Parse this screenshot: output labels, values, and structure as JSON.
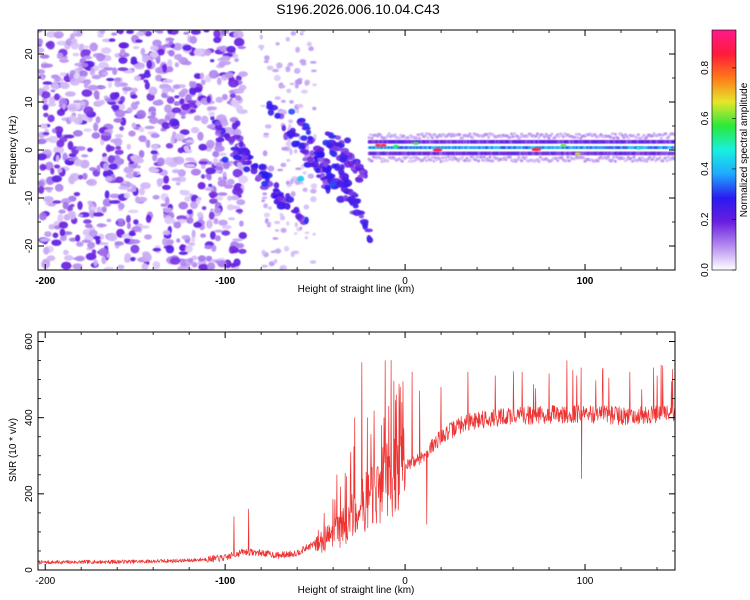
{
  "title": "S196.2026.006.10.04.C43",
  "chart_data": [
    {
      "type": "heatmap",
      "name": "spectrogram",
      "xlabel": "Height of straight line (km)",
      "ylabel": "Frequency (Hz)",
      "xlim": [
        -204,
        150
      ],
      "ylim": [
        -25,
        25
      ],
      "xticks": [
        -200,
        -100,
        0,
        100
      ],
      "xticks_bold": [
        -200,
        -100,
        100
      ],
      "yticks": [
        -20,
        -10,
        0,
        10,
        20
      ],
      "colorbar": {
        "label": "Normalized spectral amplitude",
        "range": [
          0,
          0.95
        ],
        "ticks": [
          0.0,
          0.2,
          0.4,
          0.6,
          0.8
        ],
        "tick_labels": [
          "0.0",
          "0.2",
          "0.4",
          "0.6",
          "0.8"
        ],
        "colors": [
          "#ffffff",
          "#b58cf0",
          "#6a1fe0",
          "#2a1af0",
          "#1fa8ff",
          "#18f0e0",
          "#2ae83a",
          "#e6e62a",
          "#ff7a1a",
          "#ff1a3a",
          "#ff1a8c"
        ]
      },
      "features": {
        "scatter_region_km": [
          -204,
          -110
        ],
        "cluster_region_km": [
          -110,
          -20
        ],
        "steady_line_region_km": [
          -20,
          150
        ],
        "steady_line_freq_hz": 0.5
      }
    },
    {
      "type": "line",
      "name": "snr",
      "xlabel": "Height of straight line (km)",
      "ylabel": "SNR (10 * v/v)",
      "xlim": [
        -204,
        150
      ],
      "ylim": [
        0,
        625
      ],
      "xticks": [
        -200,
        -100,
        0,
        100
      ],
      "xticks_bold": [
        -100
      ],
      "yticks": [
        0,
        200,
        400,
        600
      ],
      "color": "#ee3333",
      "baseline": [
        [
          -204,
          20
        ],
        [
          -150,
          22
        ],
        [
          -120,
          25
        ],
        [
          -100,
          32
        ],
        [
          -90,
          48
        ],
        [
          -80,
          45
        ],
        [
          -70,
          38
        ],
        [
          -60,
          45
        ],
        [
          -50,
          70
        ],
        [
          -40,
          90
        ],
        [
          -30,
          130
        ],
        [
          -20,
          190
        ],
        [
          -10,
          235
        ],
        [
          0,
          270
        ],
        [
          10,
          300
        ],
        [
          20,
          350
        ],
        [
          30,
          380
        ],
        [
          40,
          395
        ],
        [
          60,
          405
        ],
        [
          80,
          408
        ],
        [
          100,
          410
        ],
        [
          120,
          405
        ],
        [
          150,
          410
        ]
      ],
      "spikes": [
        [
          -95,
          140
        ],
        [
          -87,
          160
        ],
        [
          -38,
          250
        ],
        [
          -28,
          400
        ],
        [
          -24,
          545
        ],
        [
          -21,
          400
        ],
        [
          -13,
          380
        ],
        [
          -11,
          550
        ],
        [
          -9,
          430
        ],
        [
          -5,
          460
        ],
        [
          4,
          520
        ],
        [
          8,
          470
        ],
        [
          12,
          500
        ],
        [
          20,
          480
        ],
        [
          35,
          520
        ],
        [
          50,
          510
        ],
        [
          65,
          520
        ],
        [
          80,
          515
        ],
        [
          90,
          550
        ],
        [
          98,
          625
        ],
        [
          110,
          530
        ],
        [
          125,
          520
        ],
        [
          140,
          510
        ],
        [
          148,
          495
        ]
      ],
      "dips": [
        [
          12,
          120
        ],
        [
          98,
          240
        ]
      ]
    }
  ]
}
